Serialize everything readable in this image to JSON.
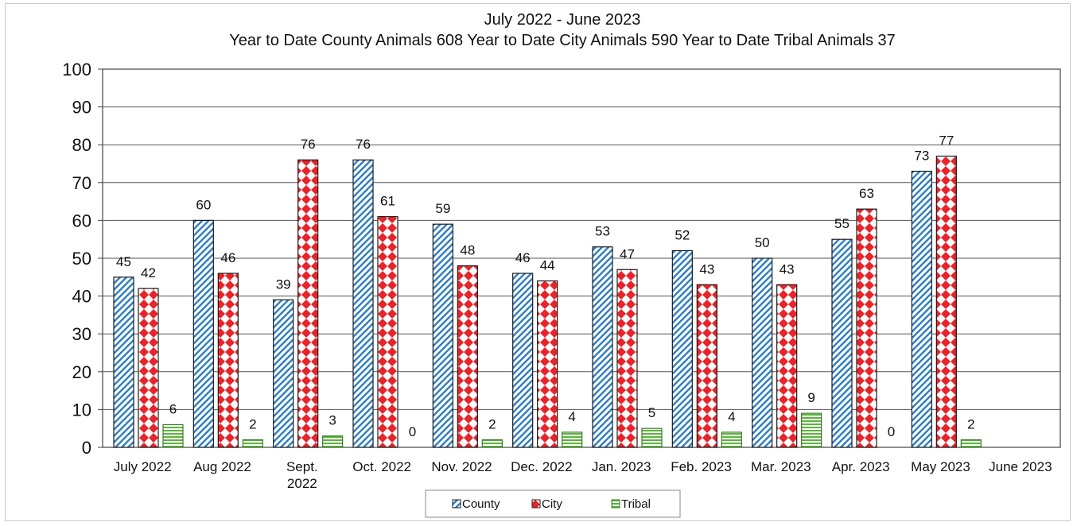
{
  "chart_data": {
    "type": "bar",
    "title_lines": [
      "July 2022 - June 2023",
      "Year to Date County Animals 608   Year to Date City Animals 590    Year to Date Tribal Animals  37"
    ],
    "categories": [
      [
        "July 2022"
      ],
      [
        "Aug 2022"
      ],
      [
        "Sept.",
        "2022"
      ],
      [
        "Oct. 2022"
      ],
      [
        "Nov. 2022"
      ],
      [
        "Dec. 2022"
      ],
      [
        "Jan. 2023"
      ],
      [
        "Feb. 2023"
      ],
      [
        "Mar. 2023"
      ],
      [
        "Apr. 2023"
      ],
      [
        "May 2023"
      ],
      [
        "June 2023"
      ]
    ],
    "series": [
      {
        "name": "County",
        "values": [
          45,
          60,
          39,
          76,
          59,
          46,
          53,
          52,
          50,
          55,
          73,
          null
        ],
        "color": "#2f7fc1",
        "pattern": "diagonal-stripes"
      },
      {
        "name": "City",
        "values": [
          42,
          46,
          76,
          61,
          48,
          44,
          47,
          43,
          43,
          63,
          77,
          null
        ],
        "color": "#e8232a",
        "pattern": "diamonds"
      },
      {
        "name": "Tribal",
        "values": [
          6,
          2,
          3,
          0,
          2,
          4,
          5,
          4,
          9,
          0,
          2,
          null
        ],
        "color": "#5cb43c",
        "pattern": "horizontal-lines"
      }
    ],
    "data_labels": [
      [
        "45",
        "60",
        "39",
        "76",
        "59",
        "46",
        "53",
        "52",
        "50",
        "55",
        "73",
        ""
      ],
      [
        "42",
        "46",
        "76",
        "61",
        "48",
        "44",
        "47",
        "43",
        "43",
        "63",
        "77",
        ""
      ],
      [
        "6",
        "2",
        "3",
        "0",
        "2",
        "4",
        "5",
        "4",
        "9",
        "0",
        "2",
        ""
      ]
    ],
    "ylim": [
      0,
      100
    ],
    "yticks": [
      0,
      10,
      20,
      30,
      40,
      50,
      60,
      70,
      80,
      90,
      100
    ],
    "grid": true,
    "legend_position": "bottom-center",
    "xlabel": "",
    "ylabel": ""
  }
}
